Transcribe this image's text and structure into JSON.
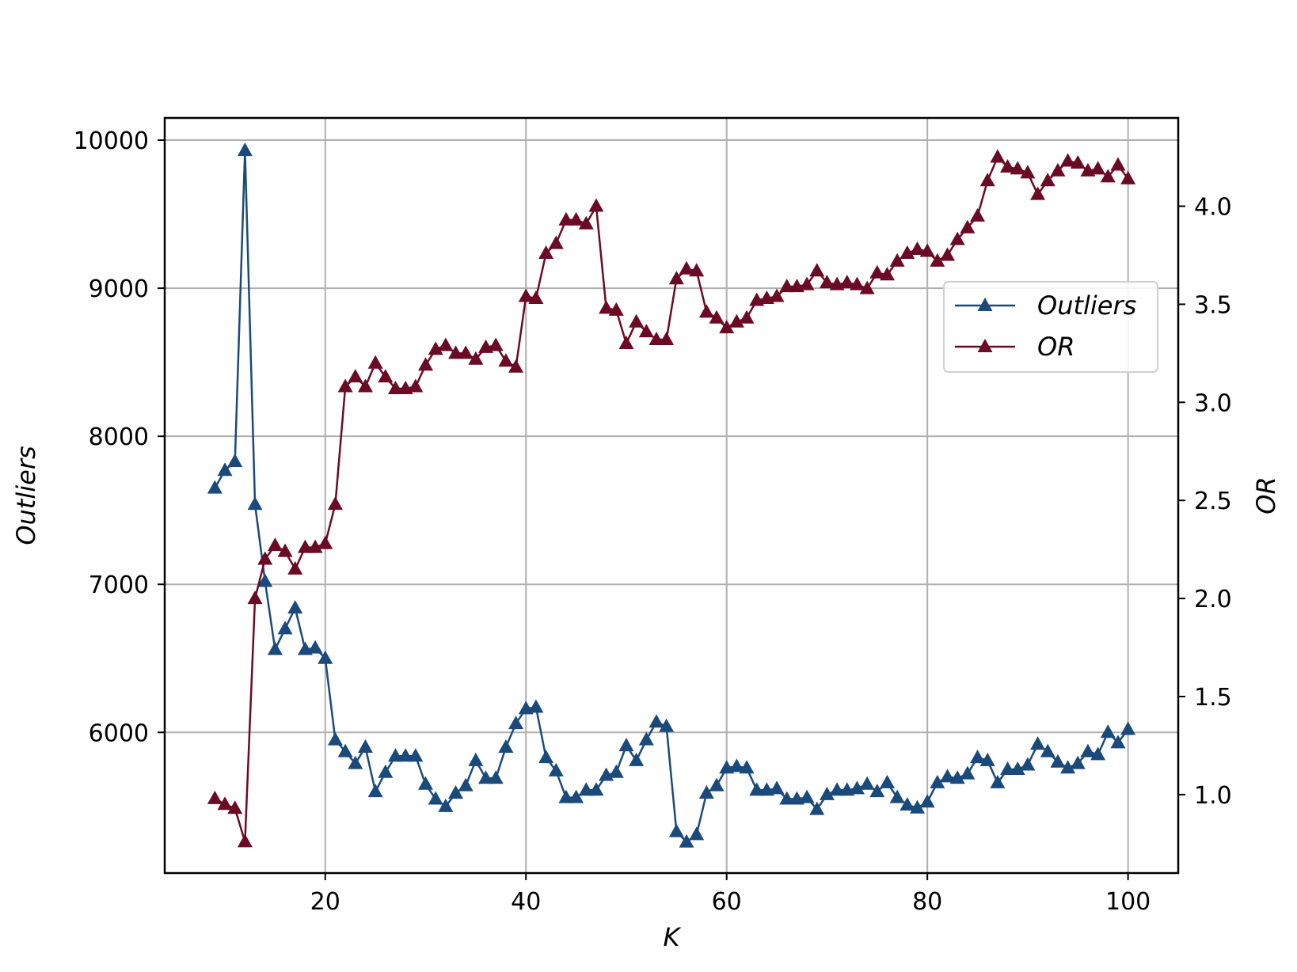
{
  "chart_data": {
    "type": "line",
    "xlabel": "K",
    "ylabel_left": "Outliers",
    "ylabel_right": "OR",
    "xlim": [
      4,
      105
    ],
    "ylim_left": [
      5050,
      10150
    ],
    "ylim_right": [
      0.6,
      4.45
    ],
    "x_ticks": [
      20,
      40,
      60,
      80,
      100
    ],
    "y_left_ticks": [
      6000,
      7000,
      8000,
      9000,
      10000
    ],
    "y_right_ticks": [
      1.0,
      1.5,
      2.0,
      2.5,
      3.0,
      3.5,
      4.0
    ],
    "y_right_tick_labels": [
      "1.0",
      "1.5",
      "2.0",
      "2.5",
      "3.0",
      "3.5",
      "4.0"
    ],
    "grid": true,
    "legend_position": "upper-right",
    "x": [
      9,
      10,
      11,
      12,
      13,
      14,
      15,
      16,
      17,
      18,
      19,
      20,
      21,
      22,
      23,
      24,
      25,
      26,
      27,
      28,
      29,
      30,
      31,
      32,
      33,
      34,
      35,
      36,
      37,
      38,
      39,
      40,
      41,
      42,
      43,
      44,
      45,
      46,
      47,
      48,
      49,
      50,
      51,
      52,
      53,
      54,
      55,
      56,
      57,
      58,
      59,
      60,
      61,
      62,
      63,
      64,
      65,
      66,
      67,
      68,
      69,
      70,
      71,
      72,
      73,
      74,
      75,
      76,
      77,
      78,
      79,
      80,
      81,
      82,
      83,
      84,
      85,
      86,
      87,
      88,
      89,
      90,
      91,
      92,
      93,
      94,
      95,
      96,
      97,
      98,
      99,
      100
    ],
    "series": [
      {
        "name": "Outliers",
        "axis": "left",
        "color": "#1a4a7c",
        "marker": "triangle",
        "values": [
          7650,
          7770,
          7830,
          9930,
          7540,
          7020,
          6560,
          6700,
          6840,
          6560,
          6570,
          6500,
          5950,
          5870,
          5790,
          5900,
          5600,
          5730,
          5840,
          5840,
          5840,
          5650,
          5550,
          5500,
          5590,
          5640,
          5810,
          5690,
          5690,
          5900,
          6060,
          6160,
          6170,
          5830,
          5740,
          5560,
          5560,
          5610,
          5610,
          5710,
          5730,
          5910,
          5810,
          5950,
          6070,
          6040,
          5330,
          5260,
          5310,
          5590,
          5640,
          5760,
          5770,
          5760,
          5610,
          5610,
          5620,
          5550,
          5550,
          5560,
          5480,
          5580,
          5610,
          5610,
          5620,
          5650,
          5600,
          5660,
          5560,
          5510,
          5490,
          5530,
          5660,
          5700,
          5690,
          5720,
          5830,
          5810,
          5660,
          5750,
          5750,
          5780,
          5920,
          5870,
          5800,
          5760,
          5790,
          5870,
          5850,
          6000,
          5930,
          6020
        ]
      },
      {
        "name": "OR",
        "axis": "right",
        "color": "#6b0a25",
        "marker": "triangle",
        "values": [
          0.98,
          0.95,
          0.93,
          0.76,
          2.0,
          2.2,
          2.27,
          2.24,
          2.15,
          2.26,
          2.26,
          2.28,
          2.48,
          3.08,
          3.13,
          3.08,
          3.2,
          3.13,
          3.07,
          3.07,
          3.08,
          3.19,
          3.27,
          3.29,
          3.25,
          3.25,
          3.22,
          3.28,
          3.29,
          3.21,
          3.18,
          3.54,
          3.53,
          3.76,
          3.81,
          3.93,
          3.93,
          3.91,
          4.0,
          3.48,
          3.47,
          3.3,
          3.41,
          3.36,
          3.32,
          3.32,
          3.63,
          3.68,
          3.67,
          3.46,
          3.43,
          3.38,
          3.41,
          3.43,
          3.52,
          3.53,
          3.54,
          3.59,
          3.59,
          3.6,
          3.67,
          3.61,
          3.6,
          3.61,
          3.6,
          3.58,
          3.66,
          3.65,
          3.72,
          3.76,
          3.78,
          3.77,
          3.72,
          3.75,
          3.83,
          3.89,
          3.95,
          4.13,
          4.25,
          4.2,
          4.19,
          4.17,
          4.06,
          4.13,
          4.18,
          4.23,
          4.22,
          4.18,
          4.19,
          4.15,
          4.21,
          4.14
        ]
      }
    ]
  }
}
